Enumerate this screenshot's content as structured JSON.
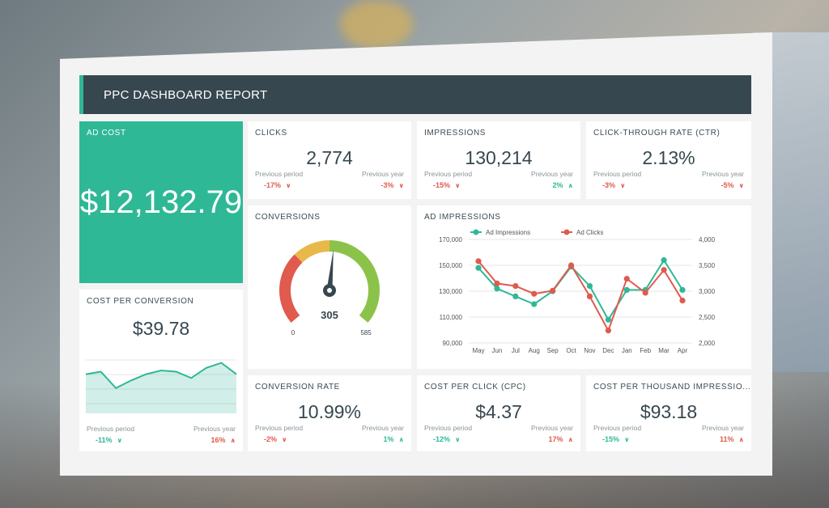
{
  "header": {
    "title": "PPC DASHBOARD REPORT"
  },
  "labels": {
    "previous_period": "Previous period",
    "previous_year": "Previous year"
  },
  "ad_cost": {
    "title": "AD COST",
    "value": "$12,132.79"
  },
  "clicks": {
    "title": "CLICKS",
    "value": "2,774",
    "prev_period": "-17%",
    "prev_year": "-3%"
  },
  "impressions": {
    "title": "IMPRESSIONS",
    "value": "130,214",
    "prev_period": "-15%",
    "prev_year": "2%"
  },
  "ctr": {
    "title": "CLICK-THROUGH RATE (CTR)",
    "value": "2.13%",
    "prev_period": "-3%",
    "prev_year": "-5%"
  },
  "conversions": {
    "title": "CONVERSIONS",
    "value": "305",
    "min": "0",
    "max": "585",
    "level": 0.521
  },
  "cost_per_conversion": {
    "title": "COST PER CONVERSION",
    "value": "$39.78",
    "prev_period": "-11%",
    "prev_year": "16%",
    "sparkline": [
      62,
      66,
      40,
      52,
      62,
      68,
      66,
      56,
      72,
      80,
      62
    ]
  },
  "conversion_rate": {
    "title": "CONVERSION RATE",
    "value": "10.99%",
    "prev_period": "-2%",
    "prev_year": "1%"
  },
  "cpc": {
    "title": "COST PER CLICK (CPC)",
    "value": "$4.37",
    "prev_period": "-12%",
    "prev_year": "17%"
  },
  "cpm": {
    "title": "COST PER THOUSAND IMPRESSIO...",
    "value": "$93.18",
    "prev_period": "-15%",
    "prev_year": "11%"
  },
  "ad_impressions": {
    "title": "AD IMPRESSIONS",
    "colors": {
      "impressions": "#2fb896",
      "clicks": "#e05a4e"
    }
  },
  "chart_data": {
    "type": "line",
    "categories": [
      "May",
      "Jun",
      "Jul",
      "Aug",
      "Sep",
      "Oct",
      "Nov",
      "Dec",
      "Jan",
      "Feb",
      "Mar",
      "Apr"
    ],
    "series": [
      {
        "name": "Ad Impressions",
        "axis": "left",
        "values": [
          148000,
          132000,
          126000,
          120000,
          130000,
          149000,
          134000,
          108000,
          131000,
          131000,
          154000,
          131000
        ]
      },
      {
        "name": "Ad Clicks",
        "axis": "right",
        "values": [
          3580,
          3150,
          3100,
          2950,
          3010,
          3500,
          2900,
          2240,
          3240,
          2970,
          3410,
          2820
        ]
      }
    ],
    "ylim_left": [
      90000,
      170000
    ],
    "yticks_left": [
      "170,000",
      "150,000",
      "130,000",
      "110,000",
      "90,000"
    ],
    "ylim_right": [
      2000,
      4000
    ],
    "yticks_right": [
      "4,000",
      "3,500",
      "3,000",
      "2,500",
      "2,000"
    ],
    "legend": "top-left",
    "grid": true
  }
}
